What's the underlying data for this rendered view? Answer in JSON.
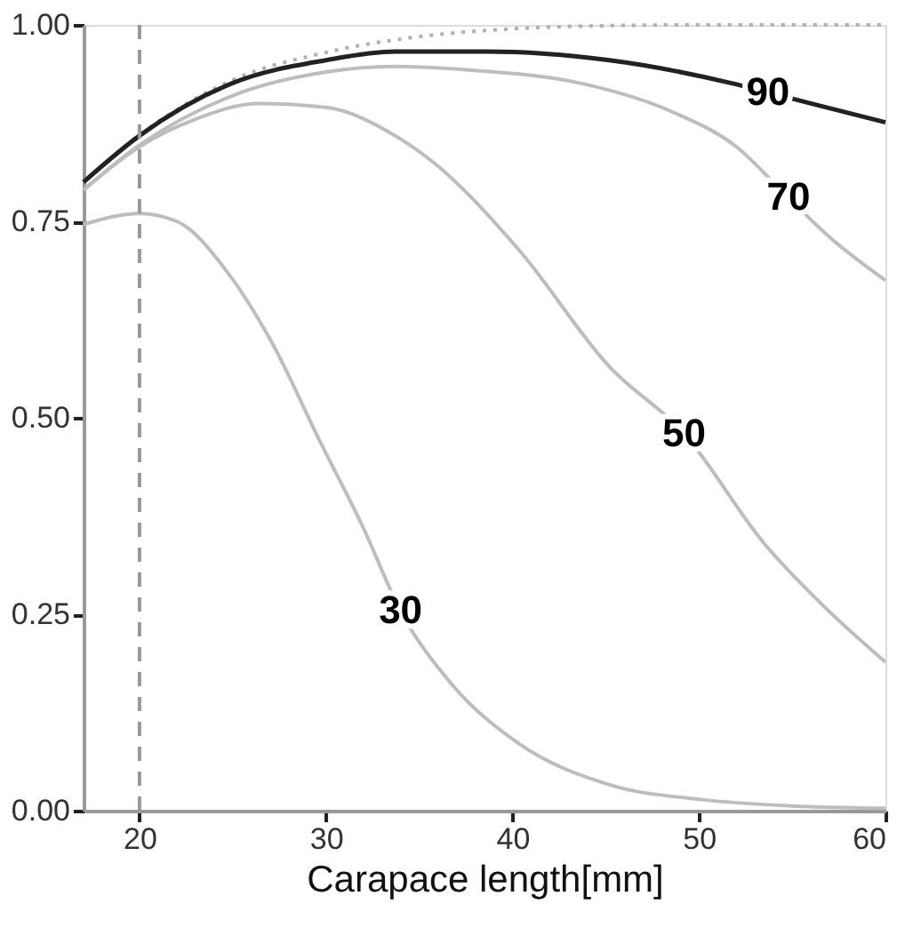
{
  "chart_data": {
    "type": "line",
    "xlabel": "Carapace length[mm]",
    "xlim": [
      17,
      60
    ],
    "xticks": [
      20,
      30,
      40,
      50,
      60
    ],
    "ylim": [
      0,
      1
    ],
    "yticks": [
      {
        "value": 0,
        "label": "0.00"
      },
      {
        "value": 0.25,
        "label": "0.25"
      },
      {
        "value": 0.5,
        "label": "0.50"
      },
      {
        "value": 0.75,
        "label": "0.75"
      },
      {
        "value": 1,
        "label": "1.00"
      }
    ],
    "grid": false,
    "marker": "none",
    "series": [
      {
        "color": "#b0b0b0",
        "line_style": "dotted",
        "x": [
          17,
          20,
          25,
          30,
          35,
          40,
          45,
          50,
          55,
          60
        ],
        "values": [
          0.8,
          0.86,
          0.93,
          0.965,
          0.985,
          0.995,
          0.999,
          1.0,
          1.0,
          1.0
        ]
      },
      {
        "color": "#bdbdbd",
        "line_style": "solid",
        "x": [
          17,
          20,
          22,
          24.75,
          27,
          29.7,
          32,
          34,
          36.6,
          40.3,
          45.2,
          50.2,
          55,
          60
        ],
        "values": [
          0.746,
          0.76,
          0.75,
          0.684,
          0.6,
          0.469,
          0.36,
          0.254,
          0.165,
          0.086,
          0.033,
          0.014,
          0.006,
          0.003
        ]
      },
      {
        "color": "#bdbdbd",
        "line_style": "solid",
        "x": [
          17,
          20,
          23,
          26.4,
          30,
          33.7,
          35.6,
          40.3,
          45.2,
          49.2,
          53.5,
          56.7,
          60
        ],
        "values": [
          0.79,
          0.845,
          0.88,
          0.9,
          0.895,
          0.859,
          0.828,
          0.715,
          0.565,
          0.48,
          0.34,
          0.26,
          0.189
        ]
      },
      {
        "color": "#bdbdbd",
        "line_style": "solid",
        "x": [
          17,
          20,
          25,
          30,
          33.7,
          38,
          43.6,
          48.5,
          52,
          54.8,
          57,
          60
        ],
        "values": [
          0.79,
          0.847,
          0.91,
          0.94,
          0.947,
          0.942,
          0.926,
          0.89,
          0.845,
          0.78,
          0.73,
          0.675
        ]
      },
      {
        "color": "#222222",
        "line_style": "solid",
        "x": [
          17,
          20,
          25,
          30,
          33.7,
          38.6,
          45.2,
          51.7,
          53.7,
          56,
          60
        ],
        "values": [
          0.8,
          0.859,
          0.926,
          0.955,
          0.966,
          0.966,
          0.955,
          0.926,
          0.914,
          0.9,
          0.876
        ]
      }
    ],
    "ref_lines": [
      {
        "axis": "x",
        "value": 20,
        "color": "#999999",
        "line_style": "dashed"
      }
    ],
    "annotations": [
      {
        "text": "30",
        "x": 34,
        "y": 0.254
      },
      {
        "text": "50",
        "x": 49.2,
        "y": 0.48
      },
      {
        "text": "70",
        "x": 54.8,
        "y": 0.78
      },
      {
        "text": "90",
        "x": 53.7,
        "y": 0.914
      }
    ]
  }
}
